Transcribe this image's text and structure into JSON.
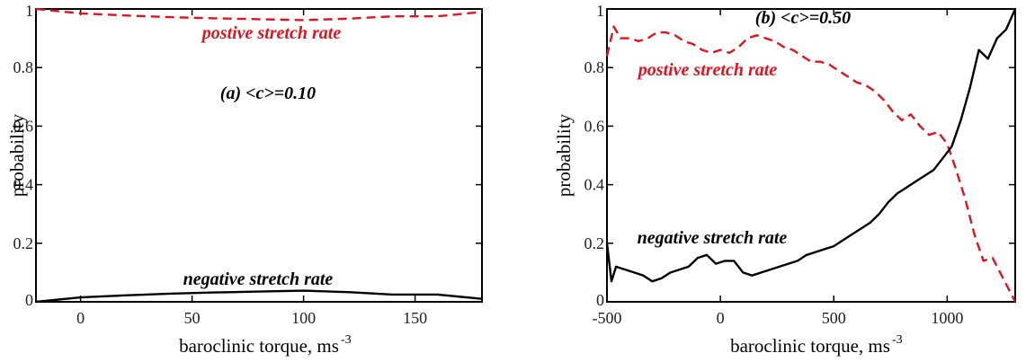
{
  "chart_data": [
    {
      "type": "line",
      "xlabel": "baroclinic torque, ms",
      "xlabel_sup": "-3",
      "ylabel": "probability",
      "xlim": [
        -20,
        180
      ],
      "ylim": [
        0,
        1
      ],
      "xticks": [
        0,
        50,
        100,
        150
      ],
      "yticks": [
        0,
        0.2,
        0.4,
        0.6,
        0.8,
        1
      ],
      "ytick_labels": [
        "0",
        "0.2",
        "0.4",
        "0.6",
        "0.8",
        "1"
      ],
      "annotations": [
        {
          "text": "postive stretch rate",
          "color": "#e0141e"
        },
        {
          "text": "(a) <c>=0.10",
          "color": "#000000"
        },
        {
          "text": "negative stretch rate",
          "color": "#000000"
        }
      ],
      "series": [
        {
          "style": "dashed",
          "color": "#e0141e",
          "x": [
            -20,
            0,
            20,
            40,
            60,
            80,
            100,
            120,
            140,
            160,
            180
          ],
          "y": [
            1.0,
            0.985,
            0.978,
            0.972,
            0.968,
            0.965,
            0.962,
            0.967,
            0.975,
            0.975,
            0.99
          ]
        },
        {
          "style": "solid",
          "color": "#000000",
          "x": [
            -20,
            0,
            20,
            40,
            60,
            80,
            100,
            120,
            140,
            160,
            180
          ],
          "y": [
            0.0,
            0.015,
            0.022,
            0.028,
            0.032,
            0.035,
            0.038,
            0.033,
            0.025,
            0.025,
            0.01
          ]
        }
      ]
    },
    {
      "type": "line",
      "xlabel": "baroclinic torque, ms",
      "xlabel_sup": "-3",
      "ylabel": "probability",
      "xlim": [
        -500,
        1300
      ],
      "ylim": [
        0,
        1
      ],
      "xticks": [
        -500,
        0,
        500,
        1000
      ],
      "yticks": [
        0,
        0.2,
        0.4,
        0.6,
        0.8,
        1
      ],
      "ytick_labels": [
        "0",
        "0.2",
        "0.4",
        "0.6",
        "0.8",
        "1"
      ],
      "annotations": [
        {
          "text": "(b) <c>=0.50",
          "color": "#000000"
        },
        {
          "text": "postive stretch rate",
          "color": "#e0141e"
        },
        {
          "text": "negative stretch rate",
          "color": "#000000"
        }
      ],
      "series": [
        {
          "style": "dashed",
          "color": "#e0141e",
          "x": [
            -500,
            -470,
            -440,
            -400,
            -360,
            -320,
            -280,
            -240,
            -200,
            -160,
            -120,
            -80,
            -40,
            0,
            40,
            80,
            120,
            160,
            200,
            240,
            280,
            320,
            360,
            400,
            440,
            480,
            520,
            560,
            600,
            640,
            680,
            720,
            760,
            800,
            840,
            880,
            920,
            960,
            1000,
            1040,
            1080,
            1120,
            1160,
            1200,
            1240,
            1280,
            1300
          ],
          "y": [
            0.84,
            0.94,
            0.9,
            0.9,
            0.89,
            0.9,
            0.92,
            0.92,
            0.91,
            0.89,
            0.88,
            0.86,
            0.85,
            0.86,
            0.85,
            0.87,
            0.9,
            0.91,
            0.9,
            0.89,
            0.87,
            0.86,
            0.84,
            0.82,
            0.82,
            0.81,
            0.79,
            0.77,
            0.75,
            0.74,
            0.72,
            0.69,
            0.65,
            0.62,
            0.64,
            0.6,
            0.57,
            0.58,
            0.54,
            0.45,
            0.35,
            0.23,
            0.14,
            0.15,
            0.09,
            0.03,
            0.0
          ]
        },
        {
          "style": "solid",
          "color": "#000000",
          "x": [
            -500,
            -480,
            -460,
            -420,
            -380,
            -340,
            -300,
            -260,
            -220,
            -180,
            -140,
            -100,
            -60,
            -20,
            20,
            60,
            100,
            140,
            180,
            220,
            260,
            300,
            340,
            380,
            420,
            460,
            500,
            540,
            580,
            620,
            660,
            700,
            740,
            780,
            820,
            860,
            900,
            940,
            980,
            1020,
            1060,
            1100,
            1140,
            1180,
            1220,
            1260,
            1300
          ],
          "y": [
            0.2,
            0.07,
            0.12,
            0.11,
            0.1,
            0.09,
            0.07,
            0.08,
            0.1,
            0.11,
            0.12,
            0.15,
            0.16,
            0.13,
            0.14,
            0.14,
            0.1,
            0.09,
            0.1,
            0.11,
            0.12,
            0.13,
            0.14,
            0.16,
            0.17,
            0.18,
            0.19,
            0.21,
            0.23,
            0.25,
            0.27,
            0.3,
            0.34,
            0.37,
            0.39,
            0.41,
            0.43,
            0.45,
            0.49,
            0.53,
            0.62,
            0.73,
            0.86,
            0.83,
            0.9,
            0.93,
            1.0
          ]
        }
      ]
    }
  ]
}
